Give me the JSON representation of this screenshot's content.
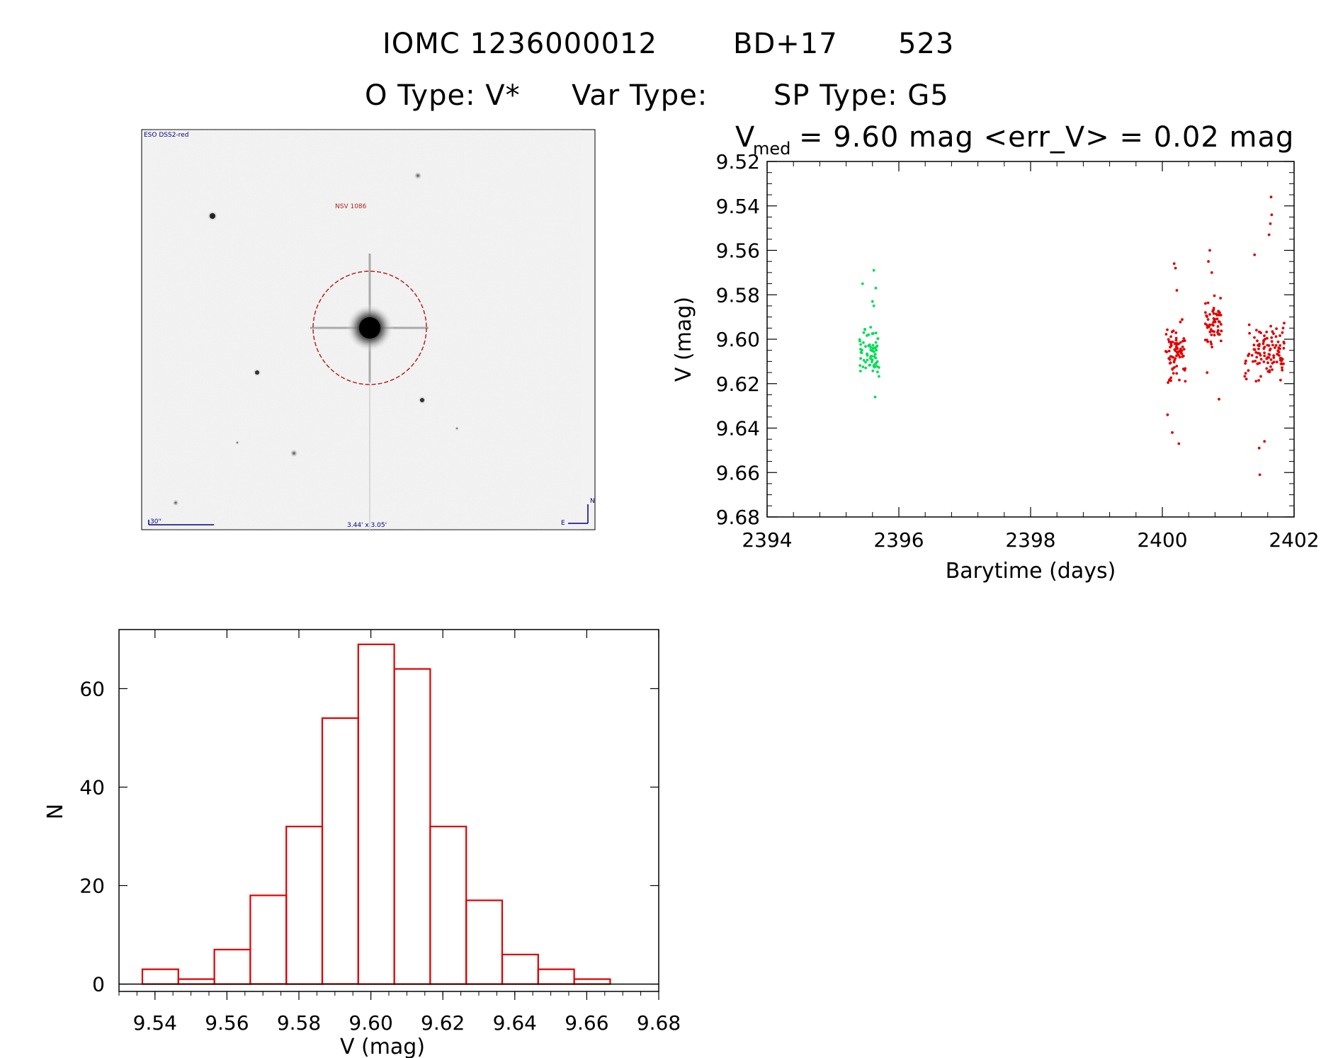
{
  "header": {
    "line1": {
      "catalog": "IOMC 1236000012",
      "alt_name": "BD+17",
      "number": "523"
    },
    "line2": {
      "otype": "O Type: V*",
      "vartype": "Var Type:",
      "sptype": "SP Type: G5"
    }
  },
  "finder": {
    "survey": "ESO DSS2-red",
    "target_label": "NSV 1086",
    "scale_label": "30\"",
    "fov_label": "3.44' x 3.05'",
    "east": "E",
    "north": "N",
    "colors": {
      "circle": "#b22222",
      "labels": "#000080"
    }
  },
  "chart_data": [
    {
      "type": "scatter",
      "title_prefix": "V",
      "title_sub": "med",
      "title_rest": "= 9.60 mag <err_V> = 0.02 mag",
      "xlabel": "Barytime (days)",
      "ylabel": "V (mag)",
      "xlim": [
        2394,
        2402
      ],
      "ylim": [
        9.68,
        9.52
      ],
      "xticks": [
        2394,
        2396,
        2398,
        2400,
        2402
      ],
      "xtick_labels": [
        "2394",
        "2396",
        "2398",
        "2400",
        "2402"
      ],
      "yticks": [
        9.52,
        9.54,
        9.56,
        9.58,
        9.6,
        9.62,
        9.64,
        9.66,
        9.68
      ],
      "ytick_labels": [
        "9.52",
        "9.54",
        "9.56",
        "9.58",
        "9.60",
        "9.62",
        "9.64",
        "9.66",
        "9.68"
      ],
      "series": [
        {
          "name": "green",
          "color": "#00dd55",
          "seed": 11,
          "count": 70,
          "x_range": [
            2395.4,
            2395.7
          ],
          "y_center": 9.606,
          "y_spread": 0.011,
          "extra": [
            [
              2395.62,
              9.569
            ],
            [
              2395.45,
              9.575
            ],
            [
              2395.65,
              9.577
            ],
            [
              2395.6,
              9.583
            ],
            [
              2395.62,
              9.585
            ],
            [
              2395.64,
              9.626
            ]
          ]
        },
        {
          "name": "red-1",
          "color": "#e00000",
          "seed": 23,
          "count": 80,
          "x_range": [
            2400.05,
            2400.35
          ],
          "y_center": 9.607,
          "y_spread": 0.014,
          "extra": [
            [
              2400.18,
              9.566
            ],
            [
              2400.2,
              9.568
            ],
            [
              2400.22,
              9.578
            ],
            [
              2400.25,
              9.647
            ],
            [
              2400.15,
              9.642
            ],
            [
              2400.08,
              9.634
            ]
          ]
        },
        {
          "name": "red-2",
          "color": "#e00000",
          "seed": 37,
          "count": 60,
          "x_range": [
            2400.65,
            2400.9
          ],
          "y_center": 9.592,
          "y_spread": 0.011,
          "extra": [
            [
              2400.72,
              9.56
            ],
            [
              2400.7,
              9.565
            ],
            [
              2400.75,
              9.57
            ],
            [
              2400.86,
              9.627
            ],
            [
              2400.68,
              9.615
            ]
          ]
        },
        {
          "name": "red-3",
          "color": "#e00000",
          "seed": 53,
          "count": 110,
          "x_range": [
            2401.25,
            2401.85
          ],
          "y_center": 9.607,
          "y_spread": 0.013,
          "extra": [
            [
              2401.65,
              9.536
            ],
            [
              2401.66,
              9.544
            ],
            [
              2401.64,
              9.548
            ],
            [
              2401.62,
              9.553
            ],
            [
              2401.4,
              9.562
            ],
            [
              2401.48,
              9.661
            ],
            [
              2401.55,
              9.646
            ],
            [
              2401.47,
              9.649
            ]
          ]
        }
      ]
    },
    {
      "type": "histogram",
      "xlabel": "V (mag)",
      "ylabel": "N",
      "xlim": [
        9.53,
        9.68
      ],
      "ylim": [
        0,
        70
      ],
      "xticks": [
        9.54,
        9.56,
        9.58,
        9.6,
        9.62,
        9.64,
        9.66,
        9.68
      ],
      "xtick_labels": [
        "9.54",
        "9.56",
        "9.58",
        "9.60",
        "9.62",
        "9.64",
        "9.66",
        "9.68"
      ],
      "yticks": [
        0,
        20,
        40,
        60
      ],
      "ytick_labels": [
        "0",
        "20",
        "40",
        "60"
      ],
      "bin_edges": [
        9.5365,
        9.5465,
        9.5565,
        9.5665,
        9.5765,
        9.5865,
        9.5965,
        9.6065,
        9.6165,
        9.6265,
        9.6365,
        9.6465,
        9.6565,
        9.6665
      ],
      "counts": [
        3,
        1,
        7,
        18,
        32,
        54,
        69,
        64,
        32,
        17,
        6,
        3,
        1
      ],
      "color": "#e00000"
    }
  ]
}
